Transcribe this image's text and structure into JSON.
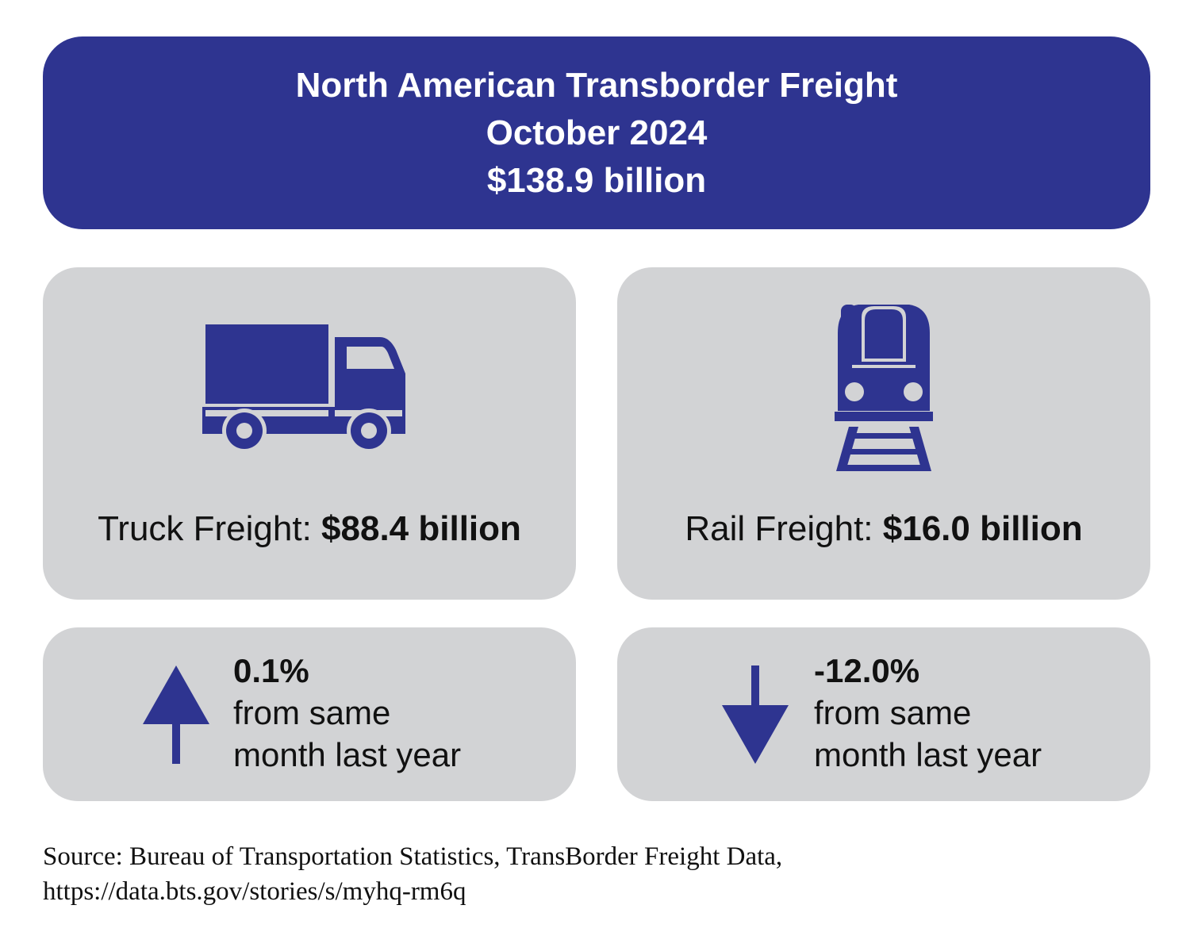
{
  "colors": {
    "brand_blue": "#2e3490",
    "card_gray": "#d2d3d5",
    "text": "#111111"
  },
  "header": {
    "title": "North American Transborder Freight",
    "month": "October 2024",
    "total": "$138.9 billion"
  },
  "truck": {
    "icon": "truck-icon",
    "label": "Truck Freight: ",
    "value": "$88.4 billion",
    "change": {
      "icon": "arrow-up-icon",
      "percent": "0.1%",
      "line1": "from same",
      "line2": "month last year"
    }
  },
  "rail": {
    "icon": "train-icon",
    "label": "Rail Freight: ",
    "value": "$16.0 billion",
    "change": {
      "icon": "arrow-down-icon",
      "percent": "-12.0%",
      "line1": "from same",
      "line2": "month last year"
    }
  },
  "source": {
    "line1": "Source: Bureau of Transportation Statistics, TransBorder Freight Data,",
    "line2": "https://data.bts.gov/stories/s/myhq-rm6q"
  }
}
